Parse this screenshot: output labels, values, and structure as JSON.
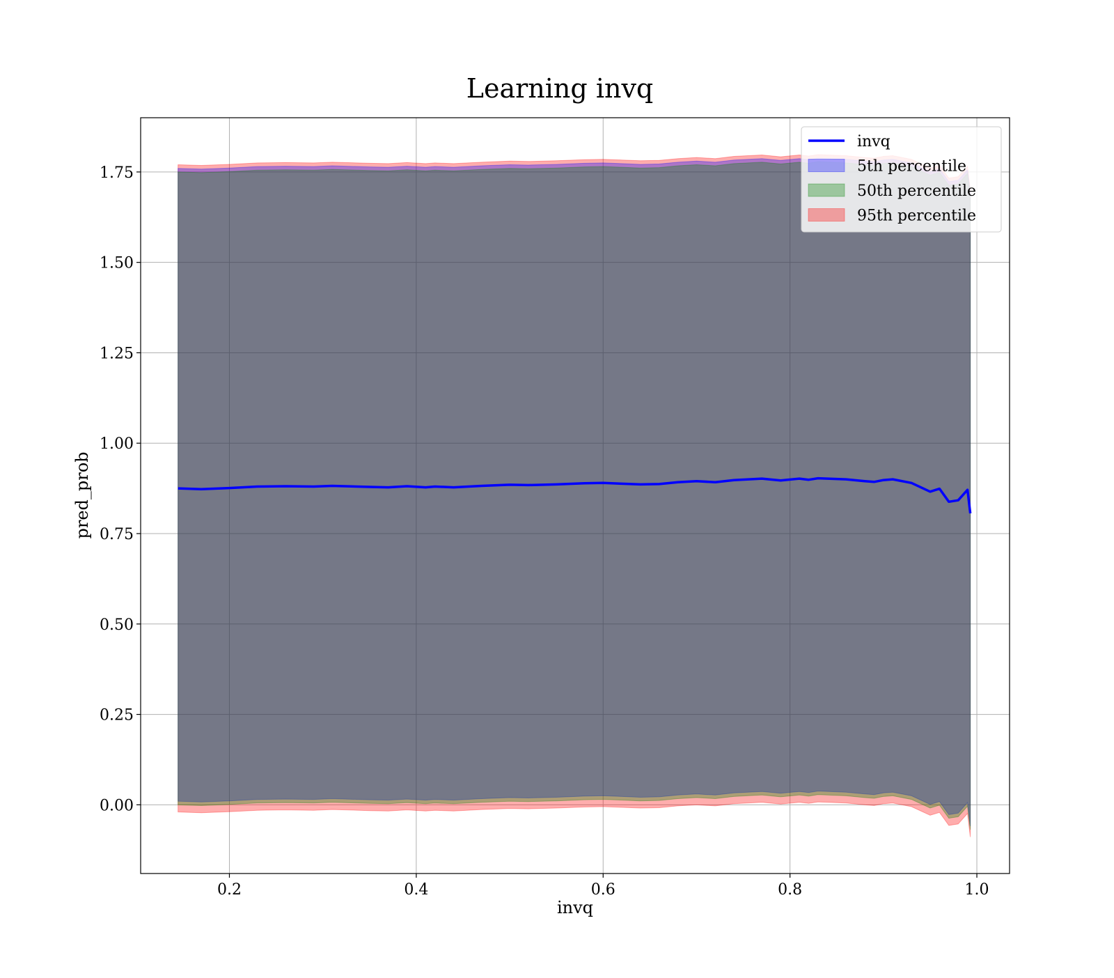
{
  "chart_data": {
    "type": "area",
    "title": "Learning invq",
    "xlabel": "invq",
    "ylabel": "pred_prob",
    "xlim": [
      0.105,
      1.035
    ],
    "ylim": [
      -0.19,
      1.9
    ],
    "x_ticks": [
      0.2,
      0.4,
      0.6,
      0.8,
      1.0
    ],
    "x_tick_labels": [
      "0.2",
      "0.4",
      "0.6",
      "0.8",
      "1.0"
    ],
    "y_ticks": [
      0.0,
      0.25,
      0.5,
      0.75,
      1.0,
      1.25,
      1.5,
      1.75
    ],
    "y_tick_labels": [
      "0.00",
      "0.25",
      "0.50",
      "0.75",
      "1.00",
      "1.25",
      "1.50",
      "1.75"
    ],
    "grid": true,
    "legend_position": "upper-right",
    "x": [
      0.145,
      0.17,
      0.2,
      0.23,
      0.26,
      0.29,
      0.31,
      0.35,
      0.37,
      0.39,
      0.41,
      0.42,
      0.44,
      0.47,
      0.5,
      0.52,
      0.55,
      0.58,
      0.6,
      0.62,
      0.64,
      0.66,
      0.68,
      0.7,
      0.72,
      0.74,
      0.77,
      0.79,
      0.81,
      0.82,
      0.83,
      0.86,
      0.88,
      0.89,
      0.9,
      0.91,
      0.93,
      0.94,
      0.95,
      0.96,
      0.97,
      0.98,
      0.99,
      0.993
    ],
    "series": [
      {
        "name": "invq",
        "kind": "line",
        "color": "#0000ff",
        "values": [
          0.875,
          0.873,
          0.876,
          0.88,
          0.881,
          0.88,
          0.882,
          0.879,
          0.878,
          0.881,
          0.878,
          0.88,
          0.878,
          0.882,
          0.885,
          0.884,
          0.886,
          0.889,
          0.89,
          0.888,
          0.886,
          0.887,
          0.892,
          0.895,
          0.892,
          0.898,
          0.902,
          0.897,
          0.902,
          0.899,
          0.903,
          0.9,
          0.895,
          0.893,
          0.898,
          0.9,
          0.89,
          0.878,
          0.866,
          0.874,
          0.838,
          0.842,
          0.871,
          0.806
        ]
      },
      {
        "name": "5th percentile",
        "kind": "band",
        "color": "#0000ff",
        "lower_offset": 0.01,
        "upper_offset": 0.01
      },
      {
        "name": "50th percentile",
        "kind": "band",
        "color": "#008000",
        "lower_offset": 0.0,
        "upper_offset": 0.0
      },
      {
        "name": "95th percentile",
        "kind": "band",
        "color": "#ff0000",
        "lower_offset": -0.02,
        "upper_offset": 0.02
      }
    ]
  }
}
